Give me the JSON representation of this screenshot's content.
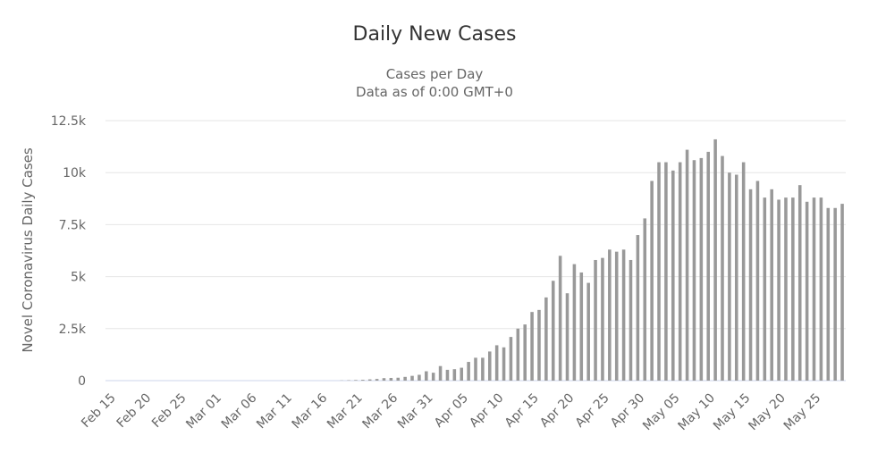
{
  "chart_data": {
    "type": "bar",
    "title": "Daily New Cases",
    "subtitle_lines": [
      "Cases per Day",
      "Data as of 0:00 GMT+0"
    ],
    "ylabel": "Novel Coronavirus Daily Cases",
    "xlabel": "",
    "ylim": [
      0,
      12500
    ],
    "yticks": [
      0,
      2500,
      5000,
      7500,
      10000,
      12500
    ],
    "ytick_labels": [
      "0",
      "2.5k",
      "5k",
      "7.5k",
      "10k",
      "12.5k"
    ],
    "xtick_labels": [
      "Feb 15",
      "Feb 20",
      "Feb 25",
      "Mar 01",
      "Mar 06",
      "Mar 11",
      "Mar 16",
      "Mar 21",
      "Mar 26",
      "Mar 31",
      "Apr 05",
      "Apr 10",
      "Apr 15",
      "Apr 20",
      "Apr 25",
      "Apr 30",
      "May 05",
      "May 10",
      "May 15",
      "May 20",
      "May 25"
    ],
    "xtick_every": 5,
    "grid": true,
    "bar_color": "#999999",
    "categories": [
      "Feb 15",
      "Feb 16",
      "Feb 17",
      "Feb 18",
      "Feb 19",
      "Feb 20",
      "Feb 21",
      "Feb 22",
      "Feb 23",
      "Feb 24",
      "Feb 25",
      "Feb 26",
      "Feb 27",
      "Feb 28",
      "Feb 29",
      "Mar 01",
      "Mar 02",
      "Mar 03",
      "Mar 04",
      "Mar 05",
      "Mar 06",
      "Mar 07",
      "Mar 08",
      "Mar 09",
      "Mar 10",
      "Mar 11",
      "Mar 12",
      "Mar 13",
      "Mar 14",
      "Mar 15",
      "Mar 16",
      "Mar 17",
      "Mar 18",
      "Mar 19",
      "Mar 20",
      "Mar 21",
      "Mar 22",
      "Mar 23",
      "Mar 24",
      "Mar 25",
      "Mar 26",
      "Mar 27",
      "Mar 28",
      "Mar 29",
      "Mar 30",
      "Mar 31",
      "Apr 01",
      "Apr 02",
      "Apr 03",
      "Apr 04",
      "Apr 05",
      "Apr 06",
      "Apr 07",
      "Apr 08",
      "Apr 09",
      "Apr 10",
      "Apr 11",
      "Apr 12",
      "Apr 13",
      "Apr 14",
      "Apr 15",
      "Apr 16",
      "Apr 17",
      "Apr 18",
      "Apr 19",
      "Apr 20",
      "Apr 21",
      "Apr 22",
      "Apr 23",
      "Apr 24",
      "Apr 25",
      "Apr 26",
      "Apr 27",
      "Apr 28",
      "Apr 29",
      "Apr 30",
      "May 01",
      "May 02",
      "May 03",
      "May 04",
      "May 05",
      "May 06",
      "May 07",
      "May 08",
      "May 09",
      "May 10",
      "May 11",
      "May 12",
      "May 13",
      "May 14",
      "May 15",
      "May 16",
      "May 17",
      "May 18",
      "May 19",
      "May 20",
      "May 21",
      "May 22",
      "May 23",
      "May 24",
      "May 25",
      "May 26",
      "May 27",
      "May 28",
      "May 29"
    ],
    "values": [
      0,
      0,
      0,
      0,
      0,
      0,
      0,
      0,
      0,
      0,
      0,
      0,
      0,
      0,
      0,
      0,
      0,
      0,
      0,
      0,
      0,
      0,
      0,
      0,
      0,
      0,
      0,
      0,
      0,
      0,
      0,
      0,
      0,
      10,
      20,
      30,
      40,
      60,
      80,
      120,
      130,
      140,
      180,
      230,
      280,
      450,
      380,
      700,
      520,
      550,
      620,
      900,
      1100,
      1100,
      1400,
      1700,
      1600,
      2100,
      2500,
      2700,
      3300,
      3400,
      4000,
      4800,
      6000,
      4200,
      5600,
      5200,
      4700,
      5800,
      5900,
      6300,
      6200,
      6300,
      5800,
      7000,
      7800,
      9600,
      10500,
      10500,
      10100,
      10500,
      11100,
      10600,
      10700,
      11000,
      11600,
      10800,
      10000,
      9900,
      10500,
      9200,
      9600,
      8800,
      9200,
      8700,
      8800,
      8800,
      9400,
      8600,
      8800,
      8800,
      8300,
      8300,
      8500
    ]
  }
}
